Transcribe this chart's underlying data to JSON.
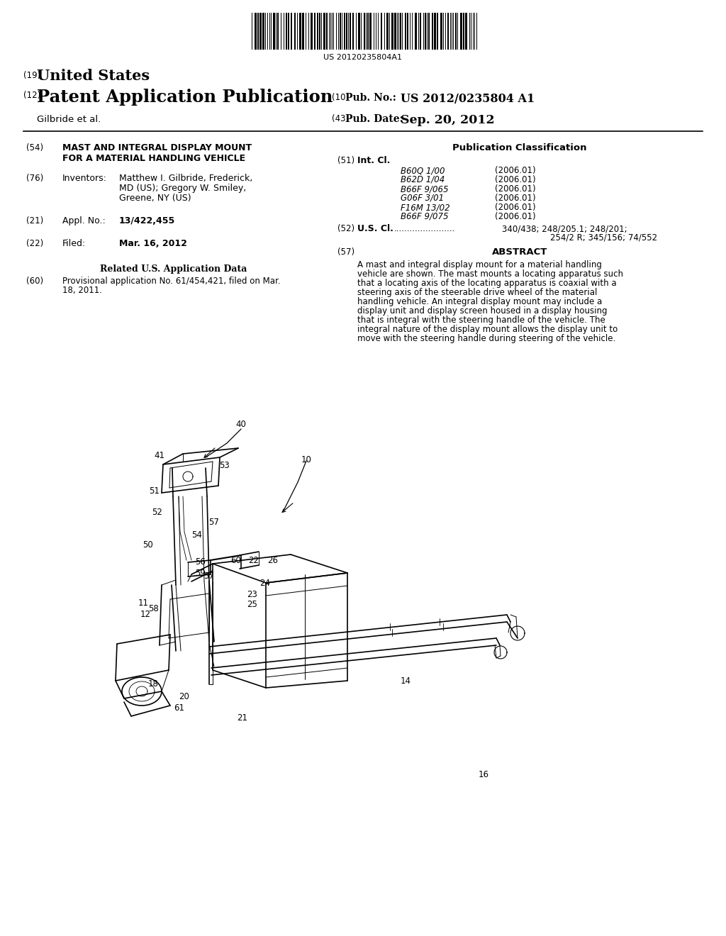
{
  "bg_color": "#ffffff",
  "barcode_text": "US 20120235804A1",
  "field_19": "(19)",
  "field_19_text": "United States",
  "field_12": "(12)",
  "field_12_text": "Patent Application Publication",
  "field_10_label": "(10)",
  "field_10_pub": "Pub. No.:",
  "field_10_value": "US 2012/0235804 A1",
  "field_43_label": "(43)",
  "field_43_pub": "Pub. Date:",
  "field_43_value": "Sep. 20, 2012",
  "author_line": "Gilbride et al.",
  "section_54_label": "(54)",
  "section_54_title_line1": "MAST AND INTEGRAL DISPLAY MOUNT",
  "section_54_title_line2": "FOR A MATERIAL HANDLING VEHICLE",
  "section_76_label": "(76)",
  "section_76_key": "Inventors:",
  "section_76_value_line1": "Matthew I. Gilbride, Frederick,",
  "section_76_value_line2": "MD (US); Gregory W. Smiley,",
  "section_76_value_line3": "Greene, NY (US)",
  "section_21_label": "(21)",
  "section_21_key": "Appl. No.:",
  "section_21_value": "13/422,455",
  "section_22_label": "(22)",
  "section_22_key": "Filed:",
  "section_22_value": "Mar. 16, 2012",
  "related_header": "Related U.S. Application Data",
  "section_60_label": "(60)",
  "section_60_value_line1": "Provisional application No. 61/454,421, filed on Mar.",
  "section_60_value_line2": "18, 2011.",
  "pub_class_header": "Publication Classification",
  "section_51_label": "(51)",
  "section_51_key": "Int. Cl.",
  "int_cl_entries": [
    [
      "B60Q 1/00",
      "(2006.01)"
    ],
    [
      "B62D 1/04",
      "(2006.01)"
    ],
    [
      "B66F 9/065",
      "(2006.01)"
    ],
    [
      "G06F 3/01",
      "(2006.01)"
    ],
    [
      "F16M 13/02",
      "(2006.01)"
    ],
    [
      "B66F 9/075",
      "(2006.01)"
    ]
  ],
  "section_52_label": "(52)",
  "section_52_key": "U.S. Cl.",
  "section_52_dots": ".......................",
  "section_52_value_line1": "340/438; 248/205.1; 248/201;",
  "section_52_value_line2": "254/2 R; 345/156; 74/552",
  "section_57_label": "(57)",
  "section_57_key": "ABSTRACT",
  "abstract_lines": [
    "A mast and integral display mount for a material handling",
    "vehicle are shown. The mast mounts a locating apparatus such",
    "that a locating axis of the locating apparatus is coaxial with a",
    "steering axis of the steerable drive wheel of the material",
    "handling vehicle. An integral display mount may include a",
    "display unit and display screen housed in a display housing",
    "that is integral with the steering handle of the vehicle. The",
    "integral nature of the display mount allows the display unit to",
    "move with the steering handle during steering of the vehicle."
  ],
  "diagram_labels": [
    [
      340,
      598,
      "40"
    ],
    [
      225,
      642,
      "41"
    ],
    [
      316,
      657,
      "53"
    ],
    [
      432,
      648,
      "10"
    ],
    [
      218,
      693,
      "51"
    ],
    [
      222,
      722,
      "52"
    ],
    [
      302,
      737,
      "57"
    ],
    [
      278,
      755,
      "54"
    ],
    [
      208,
      768,
      "50"
    ],
    [
      283,
      792,
      "56"
    ],
    [
      283,
      808,
      "59"
    ],
    [
      333,
      790,
      "60"
    ],
    [
      358,
      790,
      "22"
    ],
    [
      385,
      790,
      "26"
    ],
    [
      374,
      822,
      "24"
    ],
    [
      295,
      812,
      "57"
    ],
    [
      356,
      838,
      "23"
    ],
    [
      356,
      852,
      "25"
    ],
    [
      202,
      850,
      "11"
    ],
    [
      216,
      858,
      "58"
    ],
    [
      205,
      866,
      "12"
    ],
    [
      216,
      965,
      "18"
    ],
    [
      260,
      983,
      "20"
    ],
    [
      253,
      998,
      "61"
    ],
    [
      342,
      1013,
      "21"
    ],
    [
      572,
      960,
      "14"
    ],
    [
      682,
      1093,
      "16"
    ]
  ]
}
